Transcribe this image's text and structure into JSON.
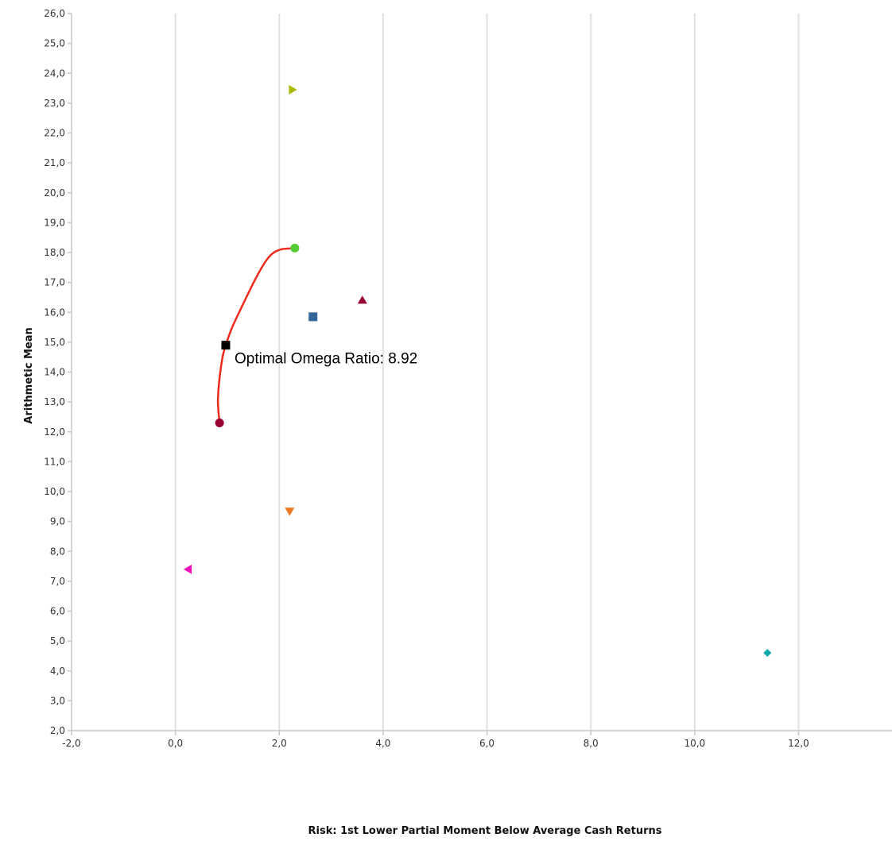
{
  "chart_data": {
    "type": "scatter",
    "title": "",
    "xlabel": "Risk: 1st Lower Partial Moment Below Average Cash Returns",
    "ylabel": "Arithmetic Mean",
    "xlim": [
      -2.0,
      13.8
    ],
    "ylim": [
      2.0,
      26.0
    ],
    "x_ticks": [
      -2.0,
      0.0,
      2.0,
      4.0,
      6.0,
      8.0,
      10.0,
      12.0
    ],
    "x_tick_labels": [
      "-2,0",
      "0,0",
      "2,0",
      "4,0",
      "6,0",
      "8,0",
      "10,0",
      "12,0"
    ],
    "y_ticks": [
      2,
      3,
      4,
      5,
      6,
      7,
      8,
      9,
      10,
      11,
      12,
      13,
      14,
      15,
      16,
      17,
      18,
      19,
      20,
      21,
      22,
      23,
      24,
      25,
      26
    ],
    "y_tick_labels": [
      "2,0",
      "3,0",
      "4,0",
      "5,0",
      "6,0",
      "7,0",
      "8,0",
      "9,0",
      "10,0",
      "11,0",
      "12,0",
      "13,0",
      "14,0",
      "15,0",
      "16,0",
      "17,0",
      "18,0",
      "19,0",
      "20,0",
      "21,0",
      "22,0",
      "23,0",
      "24,0",
      "25,0",
      "26,0"
    ],
    "grid": true,
    "legend": "none",
    "frontier": {
      "color": "#ee2b1e",
      "points": [
        [
          0.85,
          12.3
        ],
        [
          0.82,
          13.1
        ],
        [
          0.88,
          14.2
        ],
        [
          0.97,
          14.9
        ],
        [
          1.2,
          15.9
        ],
        [
          1.8,
          17.85
        ],
        [
          2.3,
          18.15
        ]
      ]
    },
    "series": [
      {
        "marker": "circle",
        "color": "#990033",
        "x": 0.85,
        "y": 12.3
      },
      {
        "marker": "circle",
        "color": "#55cc33",
        "x": 2.3,
        "y": 18.15
      },
      {
        "marker": "square",
        "color": "#000000",
        "x": 0.97,
        "y": 14.9
      },
      {
        "marker": "square",
        "color": "#336699",
        "x": 2.65,
        "y": 15.85
      },
      {
        "marker": "triangle-up",
        "color": "#990033",
        "x": 3.6,
        "y": 16.4
      },
      {
        "marker": "triangle-right",
        "color": "#aabb00",
        "x": 2.25,
        "y": 23.45
      },
      {
        "marker": "triangle-down",
        "color": "#ee7722",
        "x": 2.2,
        "y": 9.35
      },
      {
        "marker": "triangle-left",
        "color": "#ee11bb",
        "x": 0.25,
        "y": 7.4
      },
      {
        "marker": "diamond",
        "color": "#11aaaa",
        "x": 11.4,
        "y": 4.6
      }
    ],
    "annotations": [
      {
        "text": "Optimal Omega Ratio: 8.92",
        "x": 0.97,
        "y": 14.9
      }
    ]
  }
}
